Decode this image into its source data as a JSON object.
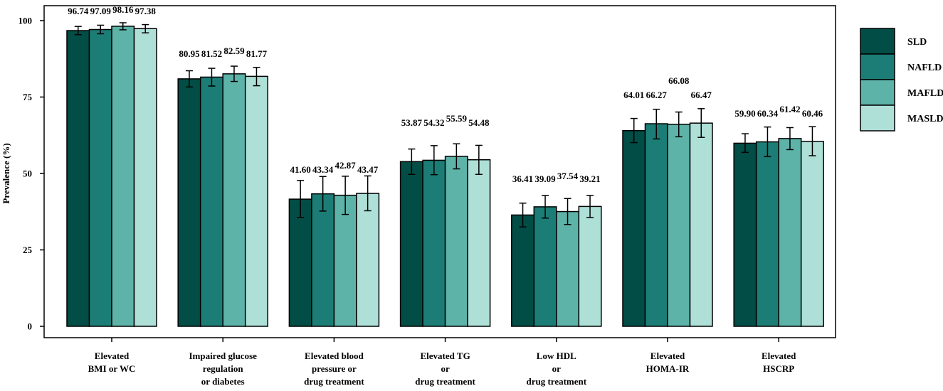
{
  "chart_data": {
    "type": "bar",
    "title": "",
    "xlabel": "",
    "ylabel": "Prevalence (%)",
    "ylim": [
      0,
      100
    ],
    "yticks": [
      0,
      25,
      50,
      75,
      100
    ],
    "categories": [
      [
        "Elevated",
        "BMI or WC"
      ],
      [
        "Impaired glucose",
        "regulation",
        "or diabetes"
      ],
      [
        "Elevated blood",
        "pressure or",
        "drug treatment"
      ],
      [
        "Elevated TG",
        "or",
        "drug treatment"
      ],
      [
        "Low HDL",
        "or",
        "drug treatment"
      ],
      [
        "Elevated",
        "HOMA-IR"
      ],
      [
        "Elevated",
        "HSCRP"
      ]
    ],
    "series": [
      {
        "name": "SLD",
        "color": "#024D45",
        "values": [
          96.74,
          80.95,
          41.6,
          53.87,
          36.41,
          64.01,
          59.9
        ],
        "labels": [
          "96.74",
          "80.95",
          "41.60",
          "53.87",
          "36.41",
          "64.01",
          "59.90"
        ],
        "err_low": [
          95.4,
          78.3,
          35.6,
          49.7,
          32.5,
          60.1,
          56.9
        ],
        "err_high": [
          98.1,
          83.6,
          47.7,
          58.0,
          40.3,
          68.0,
          63.0
        ]
      },
      {
        "name": "NAFLD",
        "color": "#1C7D76",
        "values": [
          97.09,
          81.52,
          43.34,
          54.32,
          39.09,
          66.27,
          60.34
        ],
        "labels": [
          "97.09",
          "81.52",
          "43.34",
          "54.32",
          "39.09",
          "66.27",
          "60.34"
        ],
        "err_low": [
          95.7,
          78.6,
          37.7,
          49.6,
          35.4,
          61.3,
          55.5
        ],
        "err_high": [
          98.5,
          84.4,
          49.0,
          59.1,
          42.8,
          71.0,
          65.2
        ]
      },
      {
        "name": "MAFLD",
        "color": "#5EB3A8",
        "values": [
          98.16,
          82.59,
          42.87,
          55.59,
          37.54,
          66.08,
          61.42
        ],
        "labels": [
          "98.16",
          "82.59",
          "42.87",
          "55.59",
          "37.54",
          "66.08",
          "61.42"
        ],
        "err_low": [
          97.0,
          80.1,
          36.6,
          51.5,
          33.3,
          62.0,
          57.8
        ],
        "err_high": [
          99.3,
          85.1,
          49.1,
          59.7,
          41.8,
          70.1,
          65.0
        ]
      },
      {
        "name": "MASLD",
        "color": "#AEE0D8",
        "values": [
          97.38,
          81.77,
          43.47,
          54.48,
          39.21,
          66.47,
          60.46
        ],
        "labels": [
          "97.38",
          "81.77",
          "43.47",
          "54.48",
          "39.21",
          "66.47",
          "60.46"
        ],
        "err_low": [
          96.0,
          78.7,
          37.8,
          49.7,
          35.6,
          61.8,
          55.8
        ],
        "err_high": [
          98.7,
          84.7,
          49.2,
          59.2,
          42.8,
          71.2,
          65.3
        ]
      }
    ],
    "legend": "top-right"
  }
}
